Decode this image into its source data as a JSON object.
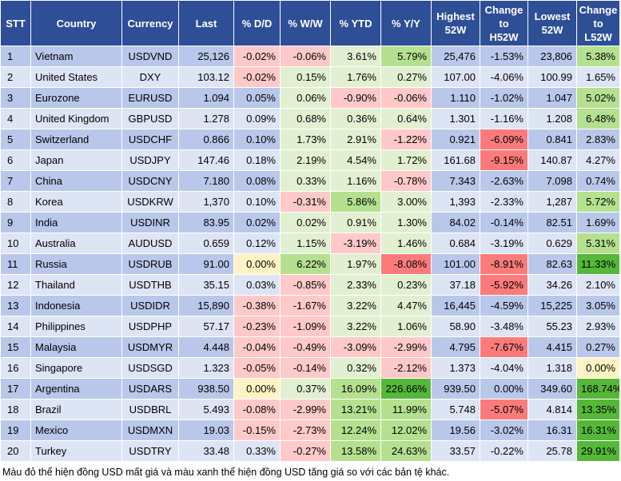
{
  "header": {
    "stt": "STT",
    "country": "Country",
    "currency": "Currency",
    "last": "Last",
    "dd": "% D/D",
    "ww": "% W/W",
    "ytd": "% YTD",
    "yy": "% Y/Y",
    "high_1": "Highest",
    "high_2": "52W",
    "chh_1": "Change",
    "chh_2": "to",
    "chh_3": "H52W",
    "low_1": "Lowest",
    "low_2": "52W",
    "chl_1": "Change",
    "chl_2": "to",
    "chl_3": "L52W"
  },
  "colors": {
    "header_bg": "#2e4e96",
    "row_odd": "#b9c7ea",
    "row_even": "#dde5f5",
    "negative_light": "#ffc9c9",
    "negative_strong": "#fb7b7b",
    "positive_light": "#e2f0d2",
    "positive_medium": "#b5e08f",
    "positive_strong": "#55b838",
    "neutral": "#fff3c4"
  },
  "rows": [
    {
      "stt": "1",
      "country": "Vietnam",
      "currency": "USDVND",
      "last": "25,126",
      "dd": "-0.02%",
      "ww": "-0.06%",
      "ytd": "3.61%",
      "yy": "5.79%",
      "high": "25,476",
      "ch_high": "-1.53%",
      "low": "23,806",
      "ch_low": "5.38%"
    },
    {
      "stt": "2",
      "country": "United States",
      "currency": "DXY",
      "last": "103.12",
      "dd": "-0.02%",
      "ww": "0.15%",
      "ytd": "1.76%",
      "yy": "0.27%",
      "high": "107.00",
      "ch_high": "-4.06%",
      "low": "100.99",
      "ch_low": "1.65%"
    },
    {
      "stt": "3",
      "country": "Eurozone",
      "currency": "EURUSD",
      "last": "1.094",
      "dd": "0.05%",
      "ww": "0.06%",
      "ytd": "-0.90%",
      "yy": "-0.06%",
      "high": "1.110",
      "ch_high": "-1.02%",
      "low": "1.047",
      "ch_low": "5.02%"
    },
    {
      "stt": "4",
      "country": "United Kingdom",
      "currency": "GBPUSD",
      "last": "1.278",
      "dd": "0.09%",
      "ww": "0.68%",
      "ytd": "0.36%",
      "yy": "0.64%",
      "high": "1.301",
      "ch_high": "-1.16%",
      "low": "1.208",
      "ch_low": "6.48%"
    },
    {
      "stt": "5",
      "country": "Switzerland",
      "currency": "USDCHF",
      "last": "0.866",
      "dd": "0.10%",
      "ww": "1.73%",
      "ytd": "2.91%",
      "yy": "-1.22%",
      "high": "0.921",
      "ch_high": "-6.09%",
      "low": "0.841",
      "ch_low": "2.83%"
    },
    {
      "stt": "6",
      "country": "Japan",
      "currency": "USDJPY",
      "last": "147.46",
      "dd": "0.18%",
      "ww": "2.19%",
      "ytd": "4.54%",
      "yy": "1.72%",
      "high": "161.68",
      "ch_high": "-9.15%",
      "low": "140.87",
      "ch_low": "4.27%"
    },
    {
      "stt": "7",
      "country": "China",
      "currency": "USDCNY",
      "last": "7.180",
      "dd": "0.08%",
      "ww": "0.33%",
      "ytd": "1.16%",
      "yy": "-0.78%",
      "high": "7.343",
      "ch_high": "-2.63%",
      "low": "7.098",
      "ch_low": "0.74%"
    },
    {
      "stt": "8",
      "country": "Korea",
      "currency": "USDKRW",
      "last": "1,370",
      "dd": "0.10%",
      "ww": "-0.31%",
      "ytd": "5.86%",
      "yy": "3.00%",
      "high": "1,393",
      "ch_high": "-2.33%",
      "low": "1,287",
      "ch_low": "5.72%"
    },
    {
      "stt": "9",
      "country": "India",
      "currency": "USDINR",
      "last": "83.95",
      "dd": "0.02%",
      "ww": "0.02%",
      "ytd": "0.91%",
      "yy": "1.30%",
      "high": "84.02",
      "ch_high": "-0.14%",
      "low": "82.51",
      "ch_low": "1.69%"
    },
    {
      "stt": "10",
      "country": "Australia",
      "currency": "AUDUSD",
      "last": "0.659",
      "dd": "0.12%",
      "ww": "1.15%",
      "ytd": "-3.19%",
      "yy": "1.46%",
      "high": "0.684",
      "ch_high": "-3.19%",
      "low": "0.629",
      "ch_low": "5.31%"
    },
    {
      "stt": "11",
      "country": "Russia",
      "currency": "USDRUB",
      "last": "91.00",
      "dd": "0.00%",
      "ww": "6.22%",
      "ytd": "1.97%",
      "yy": "-8.08%",
      "high": "101.00",
      "ch_high": "-8.91%",
      "low": "82.63",
      "ch_low": "11.33%"
    },
    {
      "stt": "12",
      "country": "Thailand",
      "currency": "USDTHB",
      "last": "35.15",
      "dd": "0.03%",
      "ww": "-0.85%",
      "ytd": "2.33%",
      "yy": "0.23%",
      "high": "37.18",
      "ch_high": "-5.92%",
      "low": "34.26",
      "ch_low": "2.10%"
    },
    {
      "stt": "13",
      "country": "Indonesia",
      "currency": "USDIDR",
      "last": "15,890",
      "dd": "-0.38%",
      "ww": "-1.67%",
      "ytd": "3.22%",
      "yy": "4.47%",
      "high": "16,445",
      "ch_high": "-4.59%",
      "low": "15,225",
      "ch_low": "3.05%"
    },
    {
      "stt": "14",
      "country": "Philippines",
      "currency": "USDPHP",
      "last": "57.17",
      "dd": "-0.23%",
      "ww": "-1.09%",
      "ytd": "3.22%",
      "yy": "1.06%",
      "high": "58.90",
      "ch_high": "-3.48%",
      "low": "55.23",
      "ch_low": "2.93%"
    },
    {
      "stt": "15",
      "country": "Malaysia",
      "currency": "USDMYR",
      "last": "4.448",
      "dd": "-0.04%",
      "ww": "-0.49%",
      "ytd": "-3.09%",
      "yy": "-2.99%",
      "high": "4.795",
      "ch_high": "-7.67%",
      "low": "4.415",
      "ch_low": "0.27%"
    },
    {
      "stt": "16",
      "country": "Singapore",
      "currency": "USDSGD",
      "last": "1.323",
      "dd": "-0.05%",
      "ww": "-0.14%",
      "ytd": "0.32%",
      "yy": "-2.12%",
      "high": "1.373",
      "ch_high": "-4.04%",
      "low": "1.318",
      "ch_low": "0.00%"
    },
    {
      "stt": "17",
      "country": "Argentina",
      "currency": "USDARS",
      "last": "938.50",
      "dd": "0.00%",
      "ww": "0.37%",
      "ytd": "16.09%",
      "yy": "226.66%",
      "high": "939.50",
      "ch_high": "0.00%",
      "low": "349.60",
      "ch_low": "168.74%"
    },
    {
      "stt": "18",
      "country": "Brazil",
      "currency": "USDBRL",
      "last": "5.493",
      "dd": "-0.08%",
      "ww": "-2.99%",
      "ytd": "13.21%",
      "yy": "11.99%",
      "high": "5.748",
      "ch_high": "-5.07%",
      "low": "4.814",
      "ch_low": "13.35%"
    },
    {
      "stt": "19",
      "country": "Mexico",
      "currency": "USDMXN",
      "last": "19.03",
      "dd": "-0.15%",
      "ww": "-2.73%",
      "ytd": "12.24%",
      "yy": "12.02%",
      "high": "19.56",
      "ch_high": "-3.02%",
      "low": "16.31",
      "ch_low": "16.31%"
    },
    {
      "stt": "20",
      "country": "Turkey",
      "currency": "USDTRY",
      "last": "33.48",
      "dd": "0.33%",
      "ww": "-0.27%",
      "ytd": "13.58%",
      "yy": "24.63%",
      "high": "33.57",
      "ch_high": "-0.22%",
      "low": "25.78",
      "ch_low": "29.91%"
    }
  ],
  "footnote": "Màu đỏ thể hiện đồng USD mất giá và màu xanh thể hiện đồng USD tăng giá so với các bản tệ khác."
}
